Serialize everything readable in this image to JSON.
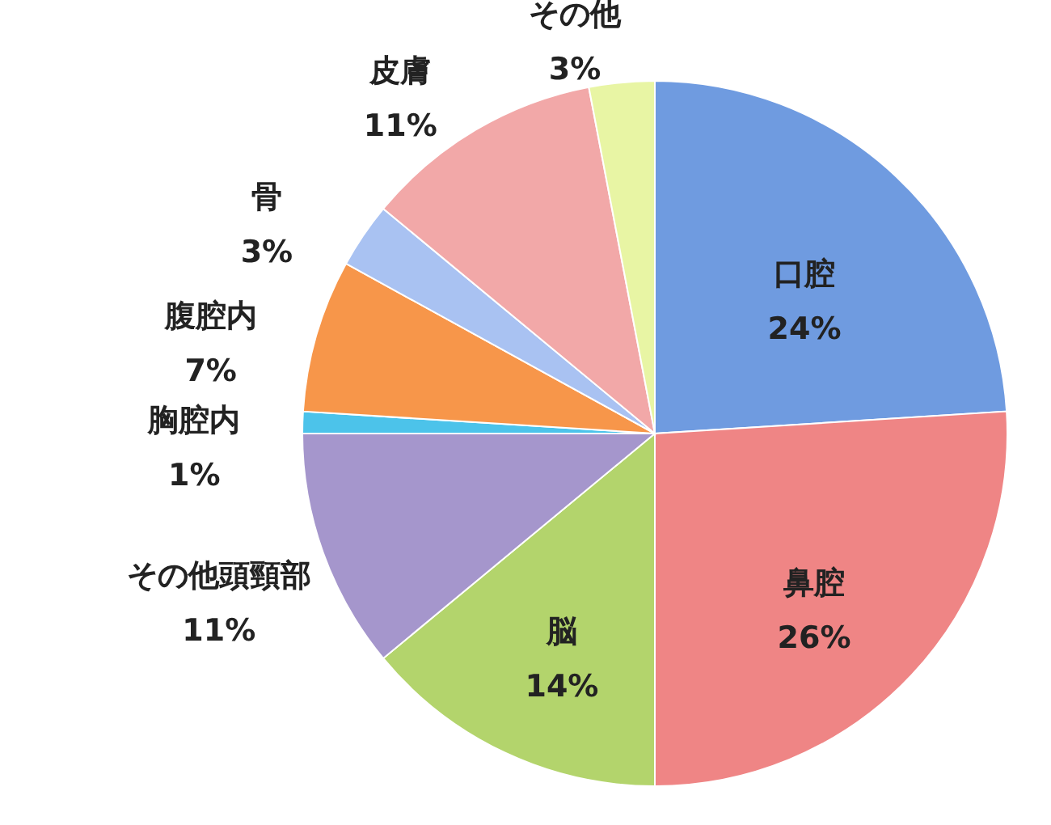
{
  "chart_data": {
    "type": "pie",
    "categories": [
      "口腔",
      "鼻腔",
      "脳",
      "その他頭頸部",
      "胸腔内",
      "腹腔内",
      "骨",
      "皮膚",
      "その他"
    ],
    "values": [
      24,
      26,
      14,
      11,
      1,
      7,
      3,
      11,
      3
    ],
    "value_labels": [
      "24%",
      "26%",
      "14%",
      "11%",
      "1%",
      "7%",
      "3%",
      "11%",
      "3%"
    ],
    "colors": [
      "#6f9be0",
      "#ef8585",
      "#b3d46c",
      "#a596cc",
      "#4cc3ea",
      "#f7964a",
      "#a9c2f2",
      "#f2a8a8",
      "#e8f5a4"
    ]
  }
}
